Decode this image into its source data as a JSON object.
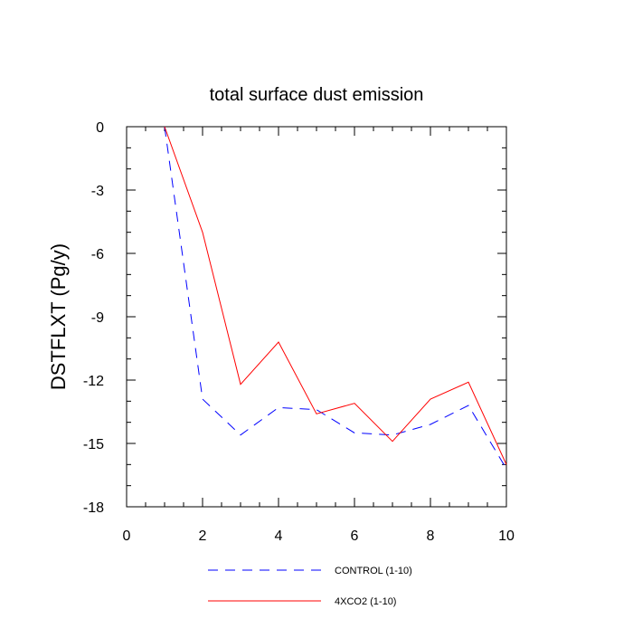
{
  "chart_data": {
    "type": "line",
    "title": "total surface dust emission",
    "xlabel": "",
    "ylabel": "DSTFLXT  (Pg/y)",
    "xlim": [
      0,
      10
    ],
    "ylim": [
      -18,
      0
    ],
    "xticks": [
      0,
      2,
      4,
      6,
      8,
      10
    ],
    "yticks": [
      0,
      -3,
      -6,
      -9,
      -12,
      -15,
      -18
    ],
    "x": [
      1,
      2,
      3,
      4,
      5,
      6,
      7,
      8,
      9,
      10
    ],
    "grid": false,
    "legend_position": "bottom",
    "series": [
      {
        "name": "CONTROL (1-10)",
        "color": "#0000ff",
        "dash": "dashed",
        "values": [
          0,
          -12.9,
          -14.6,
          -13.3,
          -13.4,
          -14.5,
          -14.6,
          -14.1,
          -13.2,
          -16.2
        ]
      },
      {
        "name": "4XCO2 (1-10)",
        "color": "#ff0000",
        "dash": "solid",
        "values": [
          0,
          -5.0,
          -12.2,
          -10.2,
          -13.6,
          -13.1,
          -14.9,
          -12.9,
          -12.1,
          -16.0
        ]
      }
    ]
  }
}
